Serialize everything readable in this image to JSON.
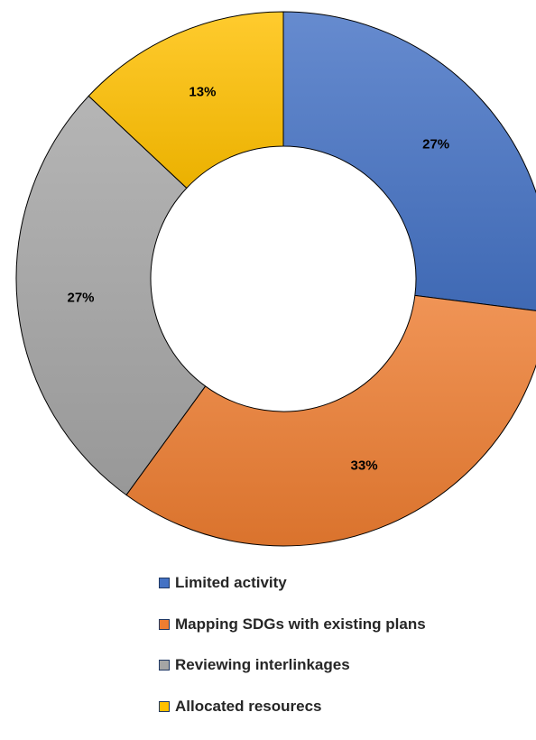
{
  "chart_data": {
    "type": "donut",
    "title": "",
    "categories": [
      "Limited activity",
      "Mapping SDGs with existing plans",
      "Reviewing interlinkages",
      "Allocated resourecs"
    ],
    "values": [
      27,
      33,
      27,
      13
    ],
    "labels": [
      "27%",
      "33%",
      "27%",
      "13%"
    ],
    "colors": [
      "#4472c4",
      "#ed7d31",
      "#a5a5a5",
      "#ffc000"
    ],
    "legend_placement": "bottom"
  }
}
